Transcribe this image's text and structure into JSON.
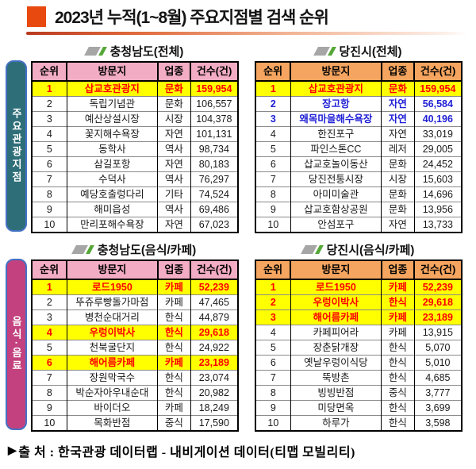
{
  "title": {
    "text": "2023년 누적(1~8월) 주요지점별 검색 순위"
  },
  "colors": {
    "title_accent": "#E8490F",
    "title_rule_start": "#B93A20",
    "chungnam_header": "#F2ACC3",
    "dangjin_header": "#F5A55F",
    "highlight_bg": "#FFFF00",
    "highlight_text": "#FF0000",
    "blue_text": "#1F1FD6",
    "tab_tourist": "#2E6E78",
    "tab_food": "#C2417E",
    "tab_border": "#4472C4",
    "slash_gray": "#A6A6A6",
    "slash_green": "#55A738"
  },
  "sections": [
    {
      "tab": "주요관광지점",
      "tab_color": "#2E6E78",
      "tables": [
        {
          "title": "충청남도(전체)",
          "theme": "pink",
          "columns": [
            "순위",
            "방문지",
            "업종",
            "건수(건)"
          ],
          "rows": [
            {
              "rank": "1",
              "name": "삽교호관광지",
              "type": "문화",
              "count": "159,954",
              "style": "highlight"
            },
            {
              "rank": "2",
              "name": "독립기념관",
              "type": "문화",
              "count": "106,557",
              "style": "normal"
            },
            {
              "rank": "3",
              "name": "예산상설시장",
              "type": "시장",
              "count": "104,378",
              "style": "normal"
            },
            {
              "rank": "4",
              "name": "꽃지해수욕장",
              "type": "자연",
              "count": "101,131",
              "style": "normal"
            },
            {
              "rank": "5",
              "name": "동학사",
              "type": "역사",
              "count": "98,734",
              "style": "normal"
            },
            {
              "rank": "6",
              "name": "삼길포항",
              "type": "자연",
              "count": "80,183",
              "style": "normal"
            },
            {
              "rank": "7",
              "name": "수덕사",
              "type": "역사",
              "count": "76,297",
              "style": "normal"
            },
            {
              "rank": "8",
              "name": "예당호출렁다리",
              "type": "기타",
              "count": "74,524",
              "style": "normal"
            },
            {
              "rank": "9",
              "name": "해미읍성",
              "type": "역사",
              "count": "69,486",
              "style": "normal"
            },
            {
              "rank": "10",
              "name": "만리포해수욕장",
              "type": "자연",
              "count": "67,023",
              "style": "normal"
            }
          ]
        },
        {
          "title": "당진시(전체)",
          "theme": "orange",
          "columns": [
            "순위",
            "방문지",
            "업종",
            "건수(건)"
          ],
          "rows": [
            {
              "rank": "1",
              "name": "삽교호관광지",
              "type": "문화",
              "count": "159,954",
              "style": "highlight"
            },
            {
              "rank": "2",
              "name": "장고항",
              "type": "자연",
              "count": "56,584",
              "style": "blue"
            },
            {
              "rank": "3",
              "name": "왜목마을해수욕장",
              "type": "자연",
              "count": "40,196",
              "style": "blue"
            },
            {
              "rank": "4",
              "name": "한진포구",
              "type": "자연",
              "count": "33,019",
              "style": "normal"
            },
            {
              "rank": "5",
              "name": "파인스톤CC",
              "type": "레저",
              "count": "29,005",
              "style": "normal"
            },
            {
              "rank": "6",
              "name": "삽교호놀이동산",
              "type": "문화",
              "count": "24,452",
              "style": "normal"
            },
            {
              "rank": "7",
              "name": "당진전통시장",
              "type": "시장",
              "count": "15,603",
              "style": "normal"
            },
            {
              "rank": "8",
              "name": "아미미술관",
              "type": "문화",
              "count": "14,696",
              "style": "normal"
            },
            {
              "rank": "9",
              "name": "삽교호함상공원",
              "type": "문화",
              "count": "13,956",
              "style": "normal"
            },
            {
              "rank": "10",
              "name": "안섬포구",
              "type": "자연",
              "count": "13,733",
              "style": "normal"
            }
          ]
        }
      ]
    },
    {
      "tab": "음식·음료",
      "tab_color": "#C2417E",
      "tables": [
        {
          "title": "충청남도(음식/카페)",
          "theme": "pink",
          "columns": [
            "순위",
            "방문지",
            "업종",
            "건수(건)"
          ],
          "rows": [
            {
              "rank": "1",
              "name": "로드1950",
              "type": "카페",
              "count": "52,239",
              "style": "highlight"
            },
            {
              "rank": "2",
              "name": "뚜쥬루빵돌가마점",
              "type": "카페",
              "count": "47,465",
              "style": "normal"
            },
            {
              "rank": "3",
              "name": "병천순대거리",
              "type": "한식",
              "count": "44,879",
              "style": "normal"
            },
            {
              "rank": "4",
              "name": "우렁이박사",
              "type": "한식",
              "count": "29,618",
              "style": "highlight"
            },
            {
              "rank": "5",
              "name": "천북굴단지",
              "type": "한식",
              "count": "24,922",
              "style": "normal"
            },
            {
              "rank": "6",
              "name": "해어름카페",
              "type": "카페",
              "count": "23,189",
              "style": "highlight"
            },
            {
              "rank": "7",
              "name": "장원막국수",
              "type": "한식",
              "count": "23,074",
              "style": "normal"
            },
            {
              "rank": "8",
              "name": "박순자아우내순대",
              "type": "한식",
              "count": "20,982",
              "style": "normal"
            },
            {
              "rank": "9",
              "name": "바이더오",
              "type": "카페",
              "count": "18,249",
              "style": "normal"
            },
            {
              "rank": "10",
              "name": "목화반점",
              "type": "중식",
              "count": "17,590",
              "style": "normal"
            }
          ]
        },
        {
          "title": "당진시(음식/카페)",
          "theme": "orange",
          "columns": [
            "순위",
            "방문지",
            "업종",
            "건수(건)"
          ],
          "rows": [
            {
              "rank": "1",
              "name": "로드1950",
              "type": "카페",
              "count": "52,239",
              "style": "highlight"
            },
            {
              "rank": "2",
              "name": "우렁이박사",
              "type": "한식",
              "count": "29,618",
              "style": "highlight"
            },
            {
              "rank": "3",
              "name": "해어름카페",
              "type": "카페",
              "count": "23,189",
              "style": "highlight"
            },
            {
              "rank": "4",
              "name": "카페피어라",
              "type": "카페",
              "count": "13,915",
              "style": "normal"
            },
            {
              "rank": "5",
              "name": "장춘닭개장",
              "type": "한식",
              "count": "5,070",
              "style": "normal"
            },
            {
              "rank": "6",
              "name": "옛날우렁이식당",
              "type": "한식",
              "count": "5,010",
              "style": "normal"
            },
            {
              "rank": "7",
              "name": "뚝방촌",
              "type": "한식",
              "count": "4,685",
              "style": "normal"
            },
            {
              "rank": "8",
              "name": "빙빙반점",
              "type": "중식",
              "count": "3,777",
              "style": "normal"
            },
            {
              "rank": "9",
              "name": "미당면옥",
              "type": "한식",
              "count": "3,699",
              "style": "normal"
            },
            {
              "rank": "10",
              "name": "하루가",
              "type": "한식",
              "count": "3,598",
              "style": "normal"
            }
          ]
        }
      ]
    }
  ],
  "footer": {
    "bullet": "▶",
    "source": "출 처 : 한국관광 데이터랩 - 내비게이션 데이터(티맵 모빌리티)"
  }
}
